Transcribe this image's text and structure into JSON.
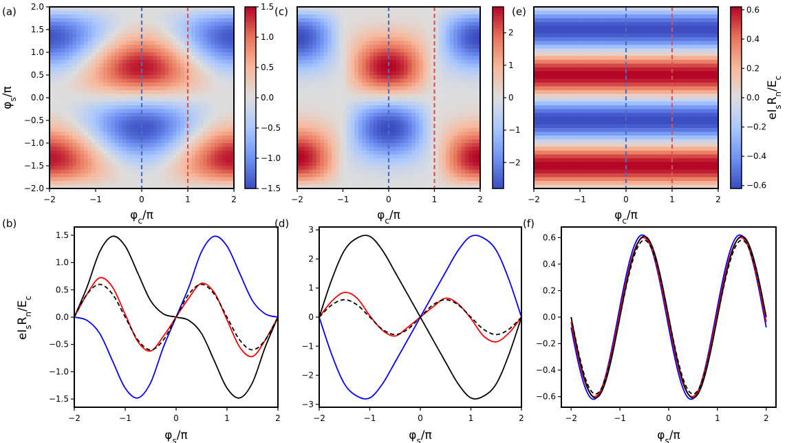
{
  "colormap": {
    "stops": [
      "#3b4cc0",
      "#6f92f3",
      "#aac7fd",
      "#dddddd",
      "#f7b89c",
      "#e7745b",
      "#b40426"
    ]
  },
  "curve_colors": {
    "black": "#000000",
    "blue": "#0000ff",
    "red": "#ff0000",
    "dashed": "#000000",
    "vline_left": "#4a6fbf",
    "vline_right": "#d9534f"
  },
  "axis_labels": {
    "phi_c": "φc/π",
    "phi_c_main": "φ",
    "phi_c_sub": "c",
    "phi_s_main": "φ",
    "phi_s_sub": "s",
    "over_pi": "/π",
    "current_ylabel": "eIsRn/Ec"
  },
  "chart_data": [
    {
      "panel": "(a)",
      "type": "heatmap",
      "xlabel": "φc/π",
      "ylabel": "φs/π",
      "x_range": [
        -2,
        2
      ],
      "y_range": [
        -2,
        2
      ],
      "x_ticks": [
        "−2",
        "−1",
        "0",
        "1",
        "2"
      ],
      "y_ticks": [
        "2.0",
        "1.5",
        "1.0",
        "0.5",
        "0.0",
        "−0.5",
        "−1.0",
        "−1.5",
        "−2.0"
      ],
      "colorbar": {
        "range": [
          -1.5,
          1.5
        ],
        "ticks": [
          "1.5",
          "1.0",
          "0.5",
          "0.0",
          "−0.5",
          "−1.0",
          "−1.5"
        ]
      },
      "amplitude": 1.5,
      "dashed_lines_x": [
        0,
        1
      ]
    },
    {
      "panel": "(c)",
      "type": "heatmap",
      "xlabel": "φc/π",
      "x_range": [
        -2,
        2
      ],
      "y_range": [
        -2,
        2
      ],
      "x_ticks": [
        "−2",
        "−1",
        "0",
        "1",
        "2"
      ],
      "colorbar": {
        "range": [
          -2.8,
          2.8
        ],
        "ticks": [
          "2",
          "1",
          "0",
          "−1",
          "−2"
        ]
      },
      "amplitude": 2.8,
      "dashed_lines_x": [
        0,
        1
      ]
    },
    {
      "panel": "(e)",
      "type": "heatmap",
      "xlabel": "φc/π",
      "x_range": [
        -2,
        2
      ],
      "y_range": [
        -2,
        2
      ],
      "x_ticks": [
        "−2",
        "−1",
        "0",
        "1",
        "2"
      ],
      "colorbar": {
        "range": [
          -0.62,
          0.62
        ],
        "ticks": [
          "0.6",
          "0.4",
          "0.2",
          "0.0",
          "−0.2",
          "−0.4",
          "−0.6"
        ],
        "label": "eIsRn/Ec"
      },
      "amplitude": 0.62,
      "dashed_lines_x": [
        0,
        1
      ]
    },
    {
      "panel": "(b)",
      "type": "line",
      "xlabel": "φs/π",
      "ylabel": "eIsRn/Ec",
      "x_range": [
        -2,
        2
      ],
      "y_range": [
        -1.65,
        1.65
      ],
      "x_ticks": [
        "−2",
        "−1",
        "0",
        "1",
        "2"
      ],
      "y_ticks": [
        "1.5",
        "1.0",
        "0.5",
        "0.0",
        "−0.5",
        "−1.0",
        "−1.5"
      ],
      "series": [
        {
          "name": "black",
          "style": "solid",
          "color": "#000000",
          "x": [
            -2,
            -1.75,
            -1.5,
            -1.25,
            -1,
            -0.75,
            -0.5,
            -0.25,
            0,
            0.25,
            0.5,
            0.75,
            1,
            1.25,
            1.5,
            1.75,
            2
          ],
          "y": [
            0,
            0.55,
            1.2,
            1.48,
            1.3,
            0.8,
            0.3,
            0.06,
            0,
            -0.06,
            -0.3,
            -0.8,
            -1.3,
            -1.48,
            -1.2,
            -0.55,
            0
          ]
        },
        {
          "name": "blue",
          "style": "solid",
          "color": "#0000ff",
          "x": [
            -2,
            -1.75,
            -1.5,
            -1.25,
            -1,
            -0.75,
            -0.5,
            -0.25,
            0,
            0.25,
            0.5,
            0.75,
            1,
            1.25,
            1.5,
            1.75,
            2
          ],
          "y": [
            0,
            -0.06,
            -0.3,
            -0.8,
            -1.3,
            -1.48,
            -1.2,
            -0.55,
            0,
            0.55,
            1.2,
            1.48,
            1.3,
            0.8,
            0.3,
            0.06,
            0
          ]
        },
        {
          "name": "red",
          "style": "solid",
          "color": "#ff0000",
          "x": [
            -2,
            -1.75,
            -1.5,
            -1.25,
            -1,
            -0.75,
            -0.5,
            -0.25,
            0,
            0.25,
            0.5,
            0.75,
            1,
            1.25,
            1.5,
            1.75,
            2
          ],
          "y": [
            0,
            0.42,
            0.72,
            0.55,
            0.05,
            -0.45,
            -0.62,
            -0.35,
            0,
            0.35,
            0.62,
            0.45,
            -0.05,
            -0.55,
            -0.72,
            -0.42,
            0
          ]
        },
        {
          "name": "dashed",
          "style": "dashed",
          "color": "#000000",
          "x": [
            -2,
            -1.75,
            -1.5,
            -1.25,
            -1,
            -0.75,
            -0.5,
            -0.25,
            0,
            0.25,
            0.5,
            0.75,
            1,
            1.25,
            1.5,
            1.75,
            2
          ],
          "y": [
            0,
            0.42,
            0.6,
            0.42,
            0,
            -0.42,
            -0.6,
            -0.42,
            0,
            0.42,
            0.6,
            0.42,
            0,
            -0.42,
            -0.6,
            -0.42,
            0
          ]
        }
      ]
    },
    {
      "panel": "(d)",
      "type": "line",
      "xlabel": "φs/π",
      "x_range": [
        -2,
        2
      ],
      "y_range": [
        -3.1,
        3.1
      ],
      "x_ticks": [
        "−2",
        "−1",
        "0",
        "1",
        "2"
      ],
      "y_ticks": [
        "3",
        "2",
        "1",
        "0",
        "−1",
        "−2",
        "−3"
      ],
      "series": [
        {
          "name": "black",
          "style": "solid",
          "color": "#000000",
          "x": [
            -2,
            -1.75,
            -1.5,
            -1.25,
            -1,
            -0.75,
            -0.5,
            -0.25,
            0,
            0.25,
            0.5,
            0.75,
            1,
            1.25,
            1.5,
            1.75,
            2
          ],
          "y": [
            0,
            1.3,
            2.3,
            2.72,
            2.78,
            2.3,
            1.55,
            0.78,
            0,
            -0.78,
            -1.55,
            -2.3,
            -2.78,
            -2.72,
            -2.3,
            -1.3,
            0
          ]
        },
        {
          "name": "blue",
          "style": "solid",
          "color": "#0000ff",
          "x": [
            -2,
            -1.75,
            -1.5,
            -1.25,
            -1,
            -0.75,
            -0.5,
            -0.25,
            0,
            0.25,
            0.5,
            0.75,
            1,
            1.25,
            1.5,
            1.75,
            2
          ],
          "y": [
            0,
            -1.3,
            -2.3,
            -2.72,
            -2.78,
            -2.3,
            -1.55,
            -0.78,
            0,
            0.78,
            1.55,
            2.3,
            2.78,
            2.72,
            2.3,
            1.3,
            0
          ]
        },
        {
          "name": "red",
          "style": "solid",
          "color": "#ff0000",
          "x": [
            -2,
            -1.75,
            -1.5,
            -1.25,
            -1,
            -0.75,
            -0.5,
            -0.25,
            0,
            0.25,
            0.5,
            0.75,
            1,
            1.25,
            1.5,
            1.75,
            2
          ],
          "y": [
            0,
            0.55,
            0.85,
            0.65,
            0.05,
            -0.45,
            -0.65,
            -0.35,
            0,
            0.35,
            0.65,
            0.45,
            -0.05,
            -0.65,
            -0.85,
            -0.55,
            0
          ]
        },
        {
          "name": "dashed",
          "style": "dashed",
          "color": "#000000",
          "x": [
            -2,
            -1.75,
            -1.5,
            -1.25,
            -1,
            -0.75,
            -0.5,
            -0.25,
            0,
            0.25,
            0.5,
            0.75,
            1,
            1.25,
            1.5,
            1.75,
            2
          ],
          "y": [
            0,
            0.42,
            0.6,
            0.42,
            0,
            -0.42,
            -0.6,
            -0.42,
            0,
            0.42,
            0.6,
            0.42,
            0,
            -0.42,
            -0.6,
            -0.42,
            0
          ]
        }
      ]
    },
    {
      "panel": "(f)",
      "type": "line",
      "xlabel": "φs/π",
      "x_range": [
        -2.2,
        2.2
      ],
      "y_range": [
        -0.68,
        0.68
      ],
      "x_ticks": [
        "−2",
        "−1",
        "0",
        "1",
        "2"
      ],
      "y_ticks": [
        "0.6",
        "0.4",
        "0.2",
        "0.0",
        "−0.2",
        "−0.4",
        "−0.6"
      ],
      "series": [
        {
          "name": "blue",
          "style": "solid",
          "color": "#0000ff",
          "amp": 0.62,
          "shift": 0.04
        },
        {
          "name": "red",
          "style": "solid",
          "color": "#ff0000",
          "amp": 0.6,
          "shift": 0.02
        },
        {
          "name": "black",
          "style": "solid",
          "color": "#000000",
          "amp": 0.61,
          "shift": 0.0
        },
        {
          "name": "dashed",
          "style": "dashed",
          "color": "#000000",
          "amp": 0.58,
          "shift": 0.0
        }
      ]
    }
  ]
}
